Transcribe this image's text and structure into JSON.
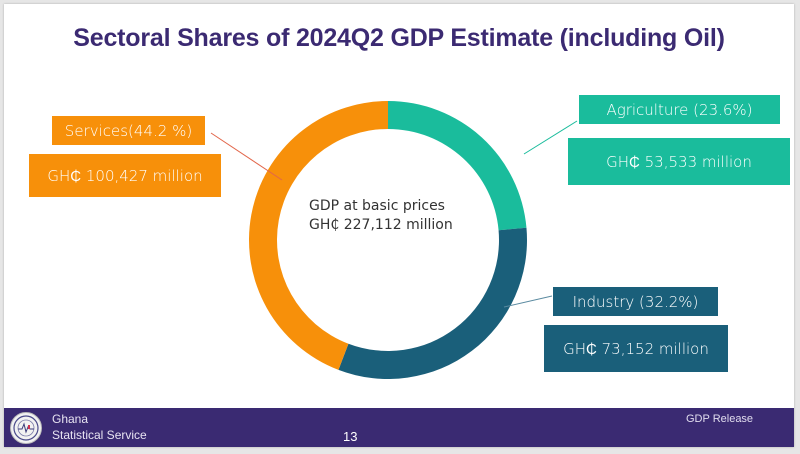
{
  "slide": {
    "title": "Sectoral Shares of 2024Q2 GDP Estimate (including Oil)"
  },
  "chart_data": {
    "type": "pie",
    "variant": "donut",
    "title": "Sectoral Shares of 2024Q2 GDP Estimate (including Oil)",
    "center_label": [
      "GDP at basic prices",
      "GH₵  227,112 million"
    ],
    "total": 227112,
    "unit": "GH₵ million",
    "start_angle_deg": 0,
    "direction": "clockwise",
    "series": [
      {
        "name": "Agriculture",
        "share_pct": 23.6,
        "value": 53533,
        "label": "Agriculture (23.6%)",
        "value_label": "GH₵ 53,533 million",
        "color": "#1abc9c"
      },
      {
        "name": "Industry",
        "share_pct": 32.2,
        "value": 73152,
        "label": "Industry (32.2%)",
        "value_label": "GH₵ 73,152 million",
        "color": "#1a5f7a"
      },
      {
        "name": "Services",
        "share_pct": 44.2,
        "value": 100427,
        "label": "Services(44.2 %)",
        "value_label": "GH₵ 100,427 million",
        "color": "#f7900a"
      }
    ]
  },
  "footer": {
    "org_line1": "Ghana",
    "org_line2": "Statistical Service",
    "page_number": "13",
    "release_label": "GDP Release",
    "logo_icon": "gss-logo-icon"
  }
}
